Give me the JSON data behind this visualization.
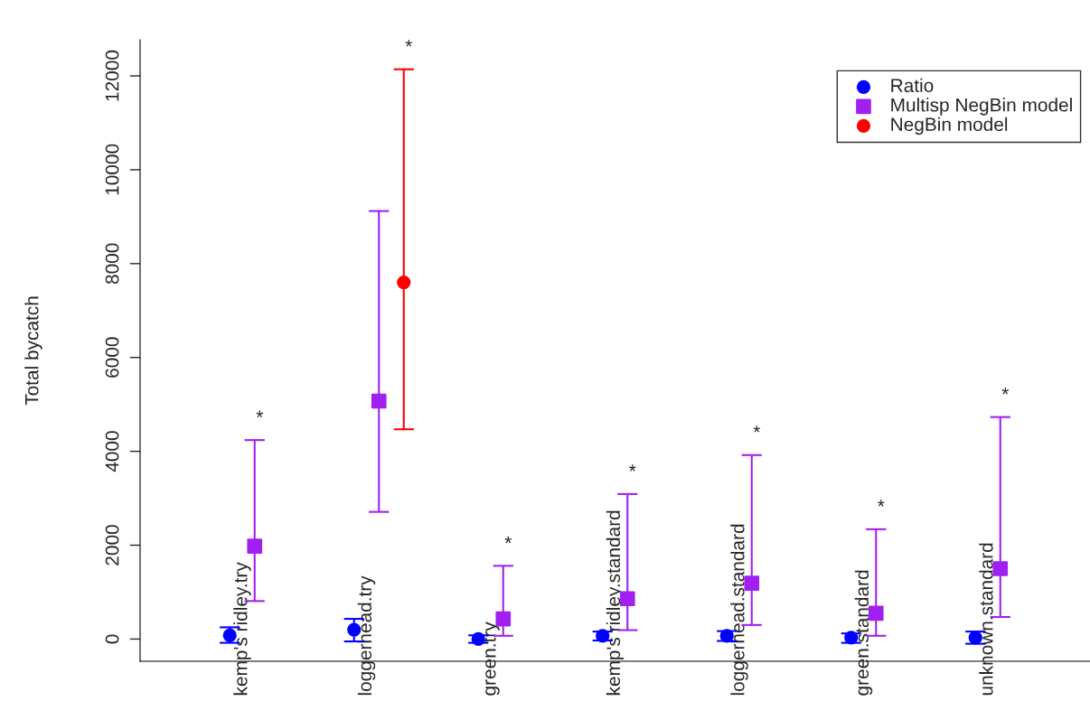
{
  "chart_data": {
    "type": "scatter",
    "ylabel": "Total bycatch",
    "categories": [
      "kemp's ridley.try",
      "loggerhead.try",
      "green.try",
      "kemp's ridley.standard",
      "loggerhead.standard",
      "green.standard",
      "unknown.standard"
    ],
    "series": [
      {
        "name": "Ratio",
        "color": "#0000ff",
        "marker": "circle",
        "values": [
          80,
          200,
          0,
          70,
          70,
          30,
          30
        ],
        "errors": [
          [
            -80,
            250
          ],
          [
            -50,
            430
          ],
          [
            -80,
            80
          ],
          [
            -30,
            160
          ],
          [
            -40,
            170
          ],
          [
            -80,
            120
          ],
          [
            -100,
            160
          ]
        ]
      },
      {
        "name": "Multisp NegBin model",
        "color": "#a020f0",
        "marker": "square",
        "values": [
          1980,
          5070,
          430,
          860,
          1190,
          550,
          1500
        ],
        "errors": [
          [
            810,
            4240
          ],
          [
            2710,
            9120
          ],
          [
            70,
            1560
          ],
          [
            190,
            3090
          ],
          [
            300,
            3920
          ],
          [
            70,
            2340
          ],
          [
            470,
            4730
          ]
        ]
      },
      {
        "name": "NegBin model",
        "color": "#ff0000",
        "marker": "circle",
        "values": [
          null,
          7600,
          null,
          null,
          null,
          null,
          null
        ],
        "errors": [
          null,
          [
            4470,
            12140
          ],
          null,
          null,
          null,
          null,
          null
        ]
      }
    ],
    "annotations": [
      "*",
      "*",
      "*",
      "*",
      "*",
      "*",
      "*"
    ],
    "ylim": [
      -473,
      12770
    ],
    "yticks": [
      0,
      2000,
      4000,
      6000,
      8000,
      10000,
      12000
    ],
    "grid": false,
    "legend": "top right"
  }
}
